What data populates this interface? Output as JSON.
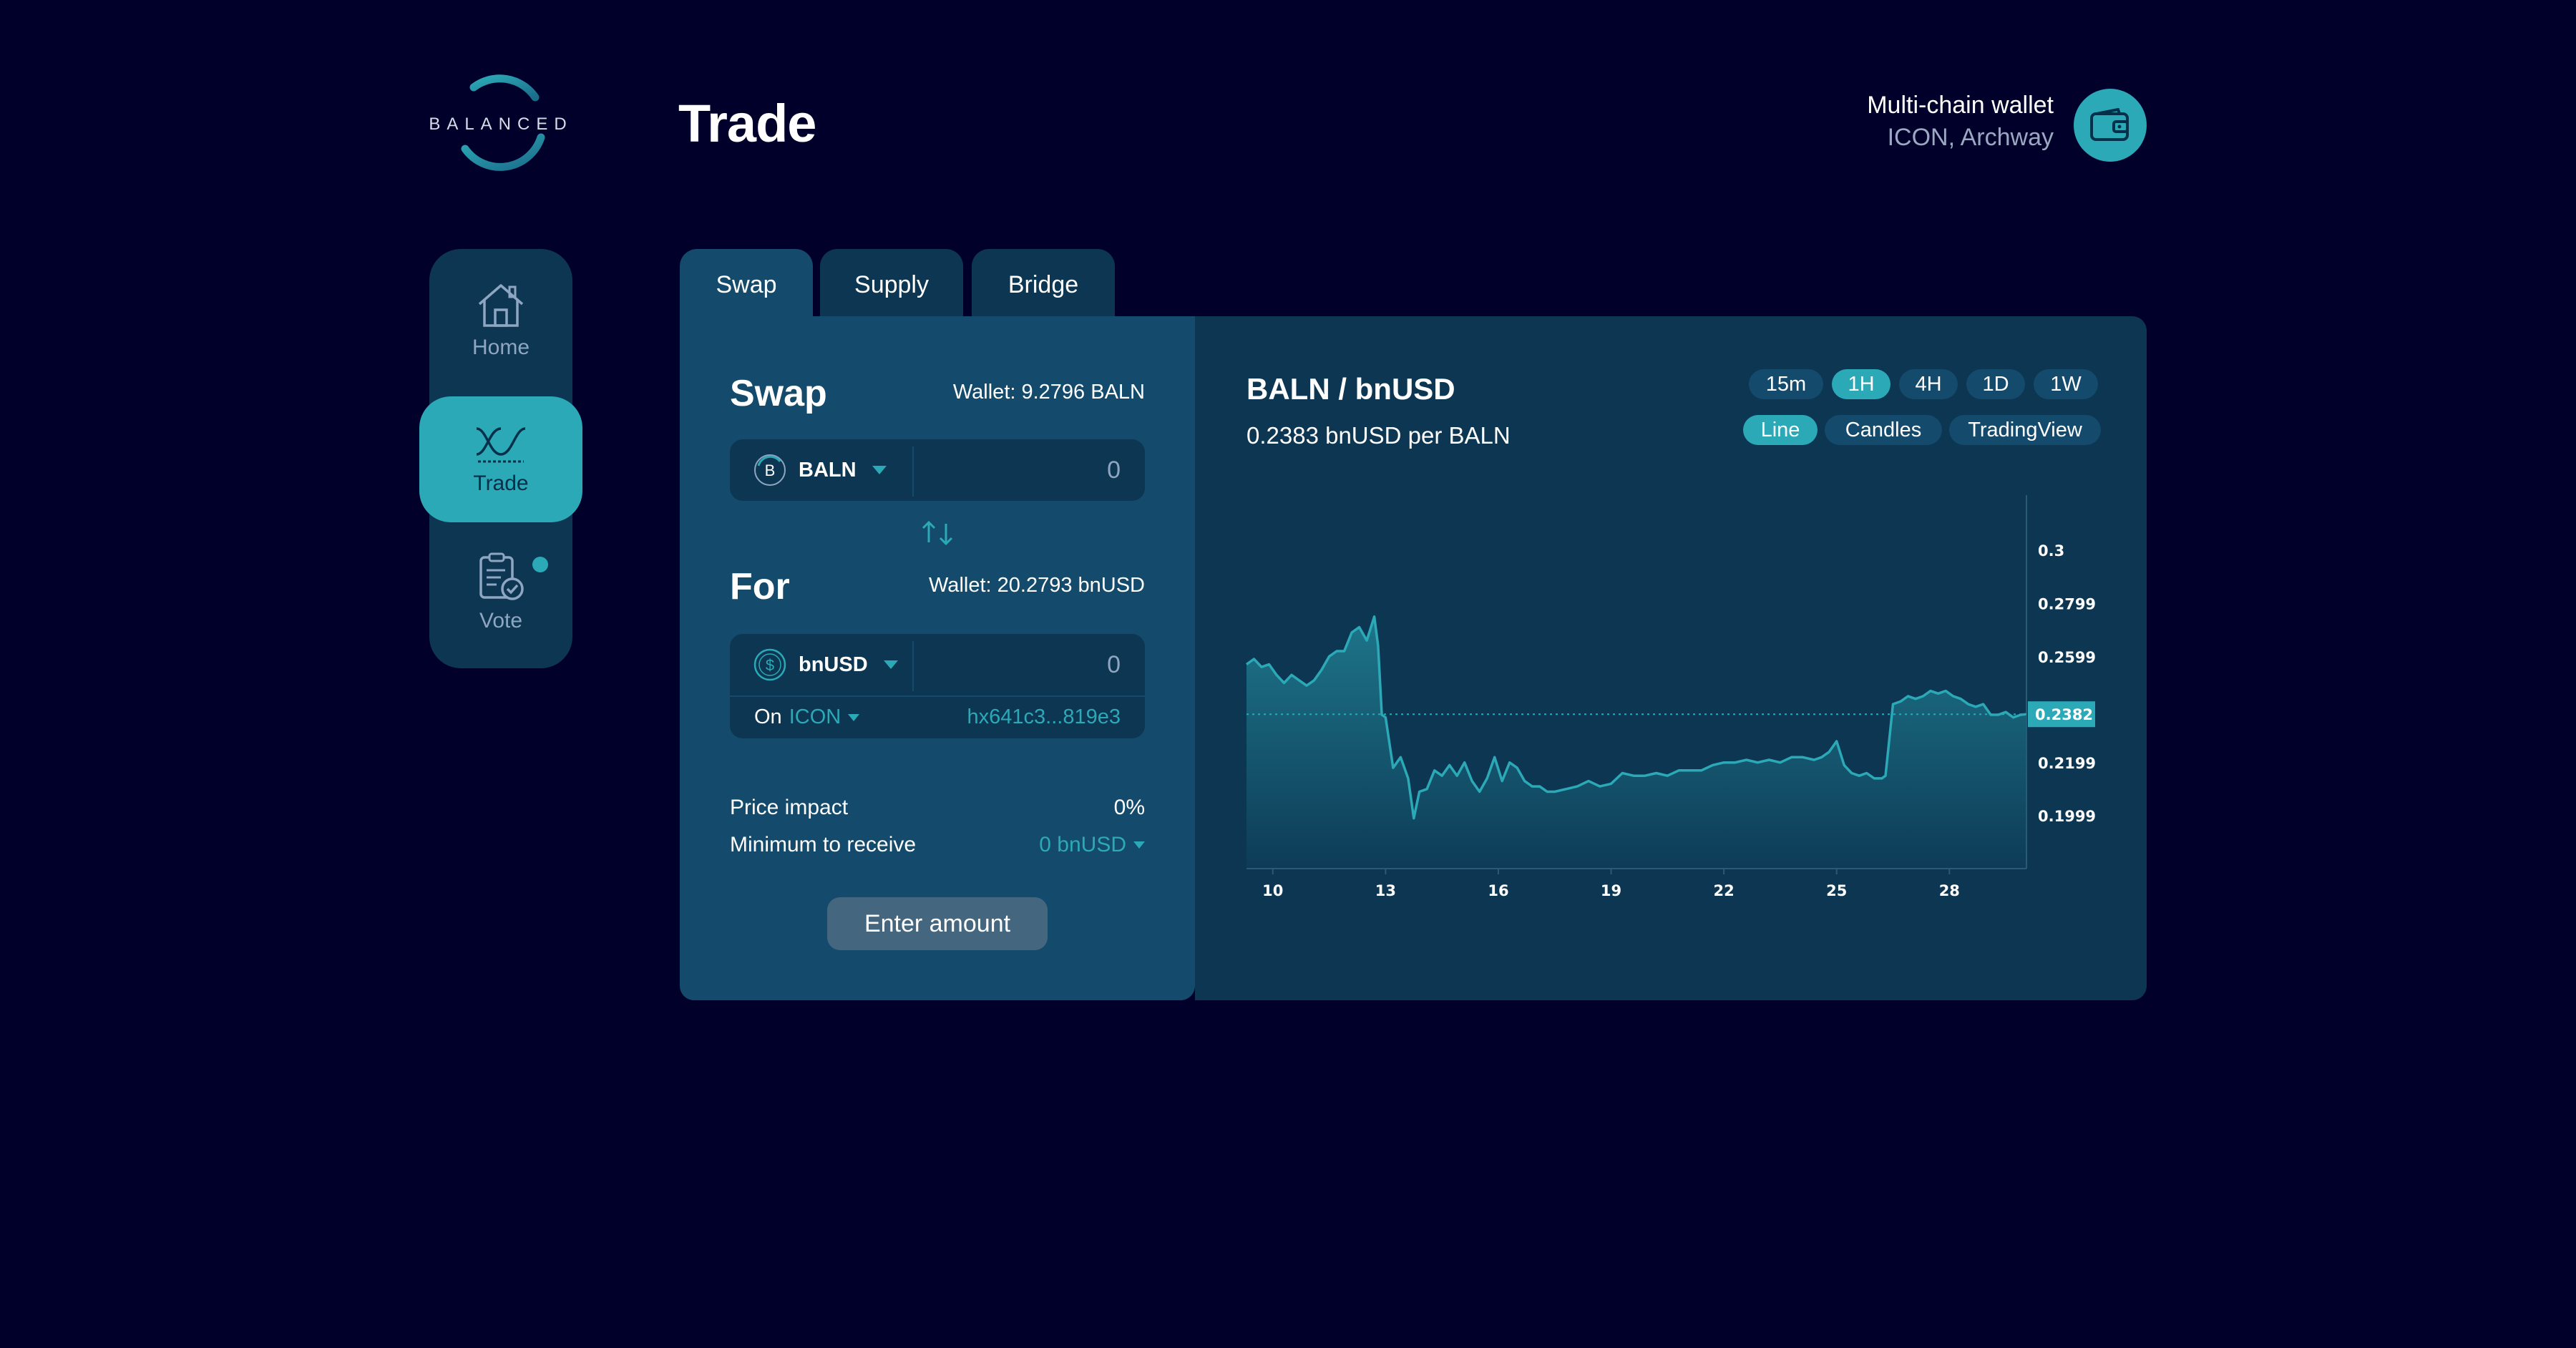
{
  "brand": {
    "logo_text": "BALANCED"
  },
  "page": {
    "title": "Trade"
  },
  "wallet": {
    "title": "Multi-chain wallet",
    "chains": "ICON, Archway"
  },
  "nav": [
    {
      "label": "Home",
      "icon": "home-icon"
    },
    {
      "label": "Trade",
      "icon": "trade-icon",
      "active": true
    },
    {
      "label": "Vote",
      "icon": "vote-icon",
      "badge": true
    }
  ],
  "tabs": [
    {
      "label": "Swap",
      "active": true
    },
    {
      "label": "Supply"
    },
    {
      "label": "Bridge"
    }
  ],
  "swap": {
    "from_title": "Swap",
    "from_wallet": "Wallet: 9.2796 BALN",
    "from_token": "BALN",
    "from_amount": "0",
    "to_title": "For",
    "to_wallet": "Wallet: 20.2793 bnUSD",
    "to_token": "bnUSD",
    "to_amount": "0",
    "on_label": "On",
    "on_chain": "ICON",
    "address": "hx641c3...819e3",
    "price_impact_label": "Price impact",
    "price_impact_value": "0%",
    "min_receive_label": "Minimum to receive",
    "min_receive_value": "0 bnUSD",
    "button_label": "Enter amount"
  },
  "chart_header": {
    "pair": "BALN / bnUSD",
    "price": "0.2383 bnUSD per BALN",
    "intervals": [
      "15m",
      "1H",
      "4H",
      "1D",
      "1W"
    ],
    "active_interval": "1H",
    "views": [
      "Line",
      "Candles",
      "TradingView"
    ],
    "active_view": "Line"
  },
  "colors": {
    "accent": "#2ca9b7",
    "background": "#01002a",
    "panel": "#0c3652",
    "panel_light": "#144a6b"
  },
  "chart_data": {
    "type": "area",
    "ylim": [
      0.18,
      0.31
    ],
    "y_ticks": [
      "0.3",
      "0.2799",
      "0.2599",
      "0.2199",
      "0.1999"
    ],
    "y_tick_values": [
      0.3,
      0.2799,
      0.2599,
      0.2199,
      0.1999
    ],
    "x_ticks": [
      "10",
      "13",
      "16",
      "19",
      "22",
      "25",
      "28"
    ],
    "x_tick_values": [
      10,
      13,
      16,
      19,
      22,
      25,
      28
    ],
    "xlim": [
      9.3,
      30.05
    ],
    "current_price_label": "0.2382",
    "current_price": 0.2382,
    "series": [
      {
        "x": [
          9.3,
          9.5,
          9.7,
          9.9,
          10.1,
          10.3,
          10.5,
          10.7,
          10.9,
          11.1,
          11.3,
          11.5,
          11.7,
          11.9,
          12.1,
          12.3,
          12.5,
          12.7,
          12.8,
          12.9,
          13.0,
          13.2,
          13.4,
          13.6,
          13.75,
          13.9,
          14.1,
          14.3,
          14.5,
          14.7,
          14.9,
          15.1,
          15.3,
          15.5,
          15.7,
          15.9,
          16.1,
          16.3,
          16.5,
          16.7,
          16.9,
          17.1,
          17.3,
          17.5,
          17.8,
          18.1,
          18.4,
          18.7,
          19.0,
          19.3,
          19.6,
          19.9,
          20.2,
          20.5,
          20.8,
          21.1,
          21.4,
          21.7,
          22.0,
          22.3,
          22.6,
          22.9,
          23.2,
          23.5,
          23.8,
          24.1,
          24.4,
          24.6,
          24.8,
          25.0,
          25.2,
          25.4,
          25.6,
          25.8,
          26.0,
          26.2,
          26.3,
          26.5,
          26.7,
          26.9,
          27.1,
          27.3,
          27.5,
          27.7,
          27.9,
          28.1,
          28.3,
          28.5,
          28.7,
          28.9,
          29.1,
          29.3,
          29.5,
          29.7,
          29.9,
          30.05
        ],
        "y": [
          0.257,
          0.259,
          0.256,
          0.257,
          0.253,
          0.25,
          0.253,
          0.251,
          0.249,
          0.251,
          0.255,
          0.26,
          0.262,
          0.262,
          0.269,
          0.271,
          0.266,
          0.275,
          0.264,
          0.238,
          0.237,
          0.218,
          0.222,
          0.214,
          0.199,
          0.209,
          0.21,
          0.217,
          0.215,
          0.219,
          0.215,
          0.22,
          0.213,
          0.209,
          0.214,
          0.222,
          0.213,
          0.22,
          0.218,
          0.213,
          0.211,
          0.211,
          0.209,
          0.209,
          0.21,
          0.211,
          0.213,
          0.211,
          0.212,
          0.216,
          0.215,
          0.215,
          0.216,
          0.215,
          0.217,
          0.217,
          0.217,
          0.219,
          0.22,
          0.22,
          0.221,
          0.22,
          0.221,
          0.22,
          0.222,
          0.222,
          0.221,
          0.222,
          0.224,
          0.228,
          0.219,
          0.216,
          0.215,
          0.216,
          0.214,
          0.214,
          0.215,
          0.242,
          0.243,
          0.245,
          0.244,
          0.245,
          0.247,
          0.246,
          0.247,
          0.245,
          0.244,
          0.242,
          0.241,
          0.242,
          0.238,
          0.238,
          0.239,
          0.237,
          0.238,
          0.2382
        ]
      }
    ]
  }
}
